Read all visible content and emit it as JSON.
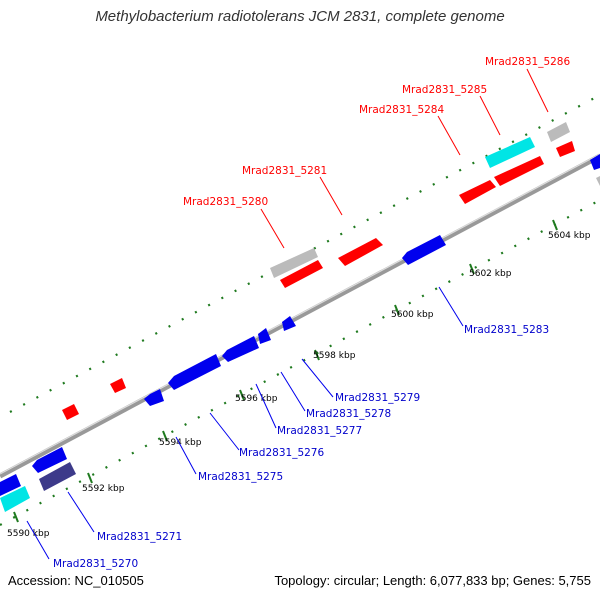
{
  "title": "Methylobacterium radiotolerans JCM 2831, complete genome",
  "footer": {
    "accession": "Accession: NC_010505",
    "summary": "Topology: circular; Length: 6,077,833 bp; Genes: 5,755"
  },
  "colors": {
    "forward_strand": "#ff0000",
    "reverse_strand": "#0000ee",
    "rna_gene": "#00e5e5",
    "pseudo_gene": "#bbbbbb",
    "highlight_reverse": "#3d3a8a",
    "backbone": "#888888",
    "tick": "#1f7a1f"
  },
  "ticks_kbp": [
    "5590 kbp",
    "5592 kbp",
    "5594 kbp",
    "5596 kbp",
    "5598 kbp",
    "5600 kbp",
    "5602 kbp",
    "5604 kbp"
  ],
  "forward_labels": [
    "Mrad2831_5280",
    "Mrad2831_5281",
    "Mrad2831_5284",
    "Mrad2831_5285",
    "Mrad2831_5286"
  ],
  "reverse_labels": [
    "Mrad2831_5270",
    "Mrad2831_5271",
    "Mrad2831_5275",
    "Mrad2831_5276",
    "Mrad2831_5277",
    "Mrad2831_5278",
    "Mrad2831_5279",
    "Mrad2831_5283"
  ]
}
